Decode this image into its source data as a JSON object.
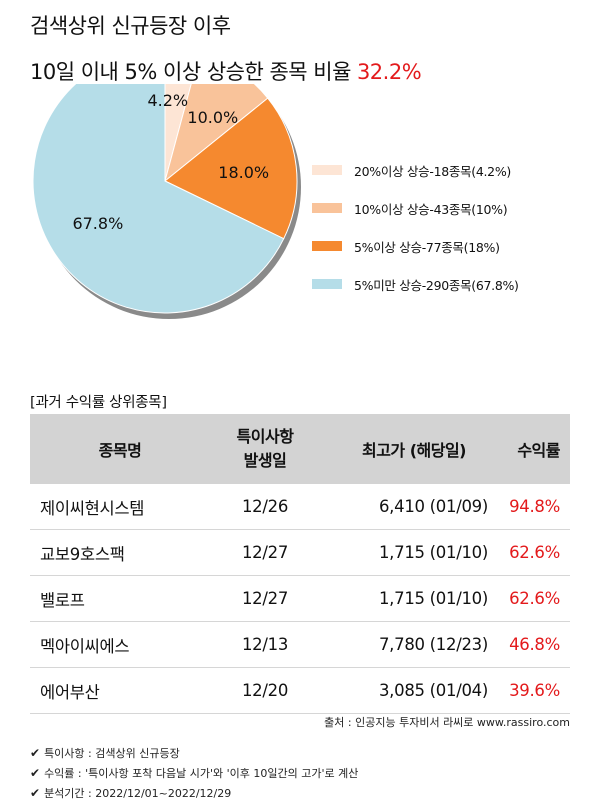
{
  "header": {
    "title_line1": "검색상위 신규등장 이후",
    "title_line2": "10일 이내 5% 이상 상승한 종목 비율",
    "highlight": "32.2%"
  },
  "chart_data": {
    "type": "pie",
    "start_angle_deg": 90,
    "direction": "clockwise",
    "slices": [
      {
        "label": "20%이상 상승-18종목(4.2%)",
        "value": 4.2,
        "data_label": "4.2%",
        "color": "#fde5d5"
      },
      {
        "label": "10%이상 상승-43종목(10%)",
        "value": 10.0,
        "data_label": "10.0%",
        "color": "#f9c39a"
      },
      {
        "label": "5%이상 상승-77종목(18%)",
        "value": 18.0,
        "data_label": "18.0%",
        "color": "#f5892f"
      },
      {
        "label": "5%미만 상승-290종목(67.8%)",
        "value": 67.8,
        "data_label": "67.8%",
        "color": "#b5dde8"
      }
    ],
    "legend_position": "right"
  },
  "table": {
    "section_label": "[과거 수익률 상위종목]",
    "headers": {
      "name": "종목명",
      "event_line1": "특이사항",
      "event_line2": "발생일",
      "high": "최고가 (해당일)",
      "return": "수익률"
    },
    "rows": [
      {
        "name": "제이씨현시스템",
        "date": "12/26",
        "high": "6,410 (01/09)",
        "ret": "94.8%"
      },
      {
        "name": "교보9호스팩",
        "date": "12/27",
        "high": "1,715 (01/10)",
        "ret": "62.6%"
      },
      {
        "name": "밸로프",
        "date": "12/27",
        "high": "1,715 (01/10)",
        "ret": "62.6%"
      },
      {
        "name": "멕아이씨에스",
        "date": "12/13",
        "high": "7,780 (12/23)",
        "ret": "46.8%"
      },
      {
        "name": "에어부산",
        "date": "12/20",
        "high": "3,085 (01/04)",
        "ret": "39.6%"
      }
    ]
  },
  "footer": {
    "source": "출처 : 인공지능 투자비서 라씨로 www.rassiro.com",
    "notes": [
      "특이사항 : 검색상위 신규등장",
      "수익률 : '특이사항 포착 다음날 시가'와 '이후 10일간의 고가'로 계산",
      "분석기간 : 2022/12/01~2022/12/29"
    ],
    "check_glyph": "✔"
  }
}
